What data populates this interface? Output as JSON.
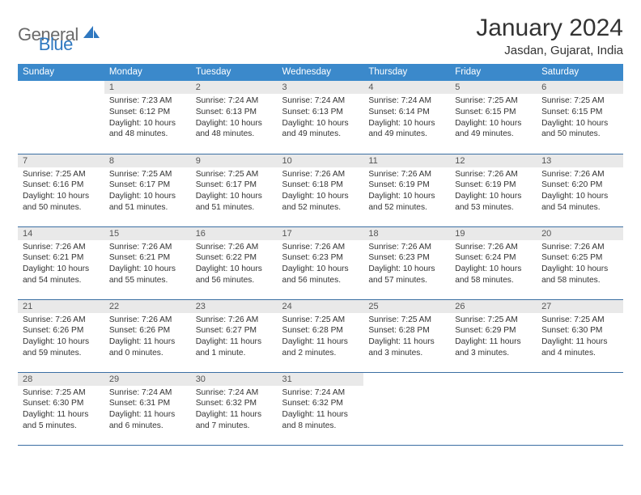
{
  "logo": {
    "text1": "General",
    "text2": "Blue",
    "color1": "#6a6a6a",
    "color2": "#2f78c0"
  },
  "title": "January 2024",
  "location": "Jasdan, Gujarat, India",
  "styling": {
    "header_bg": "#3b89cb",
    "header_fg": "#ffffff",
    "daynum_bg": "#e9e9e9",
    "border_color": "#3b6fa3",
    "page_bg": "#ffffff",
    "body_font_size": 10.2,
    "header_font_size": 11.5,
    "title_font_size": 30,
    "location_font_size": 15
  },
  "weekdays": [
    "Sunday",
    "Monday",
    "Tuesday",
    "Wednesday",
    "Thursday",
    "Friday",
    "Saturday"
  ],
  "weeks": [
    [
      {
        "n": "",
        "sr": "",
        "ss": "",
        "dl": ""
      },
      {
        "n": "1",
        "sr": "Sunrise: 7:23 AM",
        "ss": "Sunset: 6:12 PM",
        "dl": "Daylight: 10 hours and 48 minutes."
      },
      {
        "n": "2",
        "sr": "Sunrise: 7:24 AM",
        "ss": "Sunset: 6:13 PM",
        "dl": "Daylight: 10 hours and 48 minutes."
      },
      {
        "n": "3",
        "sr": "Sunrise: 7:24 AM",
        "ss": "Sunset: 6:13 PM",
        "dl": "Daylight: 10 hours and 49 minutes."
      },
      {
        "n": "4",
        "sr": "Sunrise: 7:24 AM",
        "ss": "Sunset: 6:14 PM",
        "dl": "Daylight: 10 hours and 49 minutes."
      },
      {
        "n": "5",
        "sr": "Sunrise: 7:25 AM",
        "ss": "Sunset: 6:15 PM",
        "dl": "Daylight: 10 hours and 49 minutes."
      },
      {
        "n": "6",
        "sr": "Sunrise: 7:25 AM",
        "ss": "Sunset: 6:15 PM",
        "dl": "Daylight: 10 hours and 50 minutes."
      }
    ],
    [
      {
        "n": "7",
        "sr": "Sunrise: 7:25 AM",
        "ss": "Sunset: 6:16 PM",
        "dl": "Daylight: 10 hours and 50 minutes."
      },
      {
        "n": "8",
        "sr": "Sunrise: 7:25 AM",
        "ss": "Sunset: 6:17 PM",
        "dl": "Daylight: 10 hours and 51 minutes."
      },
      {
        "n": "9",
        "sr": "Sunrise: 7:25 AM",
        "ss": "Sunset: 6:17 PM",
        "dl": "Daylight: 10 hours and 51 minutes."
      },
      {
        "n": "10",
        "sr": "Sunrise: 7:26 AM",
        "ss": "Sunset: 6:18 PM",
        "dl": "Daylight: 10 hours and 52 minutes."
      },
      {
        "n": "11",
        "sr": "Sunrise: 7:26 AM",
        "ss": "Sunset: 6:19 PM",
        "dl": "Daylight: 10 hours and 52 minutes."
      },
      {
        "n": "12",
        "sr": "Sunrise: 7:26 AM",
        "ss": "Sunset: 6:19 PM",
        "dl": "Daylight: 10 hours and 53 minutes."
      },
      {
        "n": "13",
        "sr": "Sunrise: 7:26 AM",
        "ss": "Sunset: 6:20 PM",
        "dl": "Daylight: 10 hours and 54 minutes."
      }
    ],
    [
      {
        "n": "14",
        "sr": "Sunrise: 7:26 AM",
        "ss": "Sunset: 6:21 PM",
        "dl": "Daylight: 10 hours and 54 minutes."
      },
      {
        "n": "15",
        "sr": "Sunrise: 7:26 AM",
        "ss": "Sunset: 6:21 PM",
        "dl": "Daylight: 10 hours and 55 minutes."
      },
      {
        "n": "16",
        "sr": "Sunrise: 7:26 AM",
        "ss": "Sunset: 6:22 PM",
        "dl": "Daylight: 10 hours and 56 minutes."
      },
      {
        "n": "17",
        "sr": "Sunrise: 7:26 AM",
        "ss": "Sunset: 6:23 PM",
        "dl": "Daylight: 10 hours and 56 minutes."
      },
      {
        "n": "18",
        "sr": "Sunrise: 7:26 AM",
        "ss": "Sunset: 6:23 PM",
        "dl": "Daylight: 10 hours and 57 minutes."
      },
      {
        "n": "19",
        "sr": "Sunrise: 7:26 AM",
        "ss": "Sunset: 6:24 PM",
        "dl": "Daylight: 10 hours and 58 minutes."
      },
      {
        "n": "20",
        "sr": "Sunrise: 7:26 AM",
        "ss": "Sunset: 6:25 PM",
        "dl": "Daylight: 10 hours and 58 minutes."
      }
    ],
    [
      {
        "n": "21",
        "sr": "Sunrise: 7:26 AM",
        "ss": "Sunset: 6:26 PM",
        "dl": "Daylight: 10 hours and 59 minutes."
      },
      {
        "n": "22",
        "sr": "Sunrise: 7:26 AM",
        "ss": "Sunset: 6:26 PM",
        "dl": "Daylight: 11 hours and 0 minutes."
      },
      {
        "n": "23",
        "sr": "Sunrise: 7:26 AM",
        "ss": "Sunset: 6:27 PM",
        "dl": "Daylight: 11 hours and 1 minute."
      },
      {
        "n": "24",
        "sr": "Sunrise: 7:25 AM",
        "ss": "Sunset: 6:28 PM",
        "dl": "Daylight: 11 hours and 2 minutes."
      },
      {
        "n": "25",
        "sr": "Sunrise: 7:25 AM",
        "ss": "Sunset: 6:28 PM",
        "dl": "Daylight: 11 hours and 3 minutes."
      },
      {
        "n": "26",
        "sr": "Sunrise: 7:25 AM",
        "ss": "Sunset: 6:29 PM",
        "dl": "Daylight: 11 hours and 3 minutes."
      },
      {
        "n": "27",
        "sr": "Sunrise: 7:25 AM",
        "ss": "Sunset: 6:30 PM",
        "dl": "Daylight: 11 hours and 4 minutes."
      }
    ],
    [
      {
        "n": "28",
        "sr": "Sunrise: 7:25 AM",
        "ss": "Sunset: 6:30 PM",
        "dl": "Daylight: 11 hours and 5 minutes."
      },
      {
        "n": "29",
        "sr": "Sunrise: 7:24 AM",
        "ss": "Sunset: 6:31 PM",
        "dl": "Daylight: 11 hours and 6 minutes."
      },
      {
        "n": "30",
        "sr": "Sunrise: 7:24 AM",
        "ss": "Sunset: 6:32 PM",
        "dl": "Daylight: 11 hours and 7 minutes."
      },
      {
        "n": "31",
        "sr": "Sunrise: 7:24 AM",
        "ss": "Sunset: 6:32 PM",
        "dl": "Daylight: 11 hours and 8 minutes."
      },
      {
        "n": "",
        "sr": "",
        "ss": "",
        "dl": ""
      },
      {
        "n": "",
        "sr": "",
        "ss": "",
        "dl": ""
      },
      {
        "n": "",
        "sr": "",
        "ss": "",
        "dl": ""
      }
    ]
  ]
}
